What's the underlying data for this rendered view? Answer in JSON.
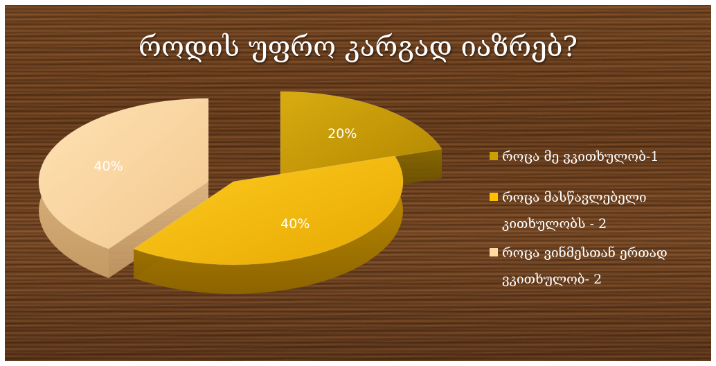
{
  "title": "როდის უფრო კარგად იაზრებ?",
  "chart_data": {
    "type": "pie",
    "title": "როდის უფრო კარგად იაზრებ?",
    "labels": [
      "როცა მე ვკითხულობ-1",
      "როცა მასწავლებელი კითხულობს - 2",
      "როცა ვინმესთან ერთად ვკითხულობ- 2"
    ],
    "values": [
      20,
      40,
      40
    ],
    "data_labels": [
      "20%",
      "40%",
      "40%"
    ],
    "colors": [
      "#c9a000",
      "#ffc000",
      "#ffd9a0"
    ],
    "legend_position": "right",
    "style": "3d-exploded"
  }
}
